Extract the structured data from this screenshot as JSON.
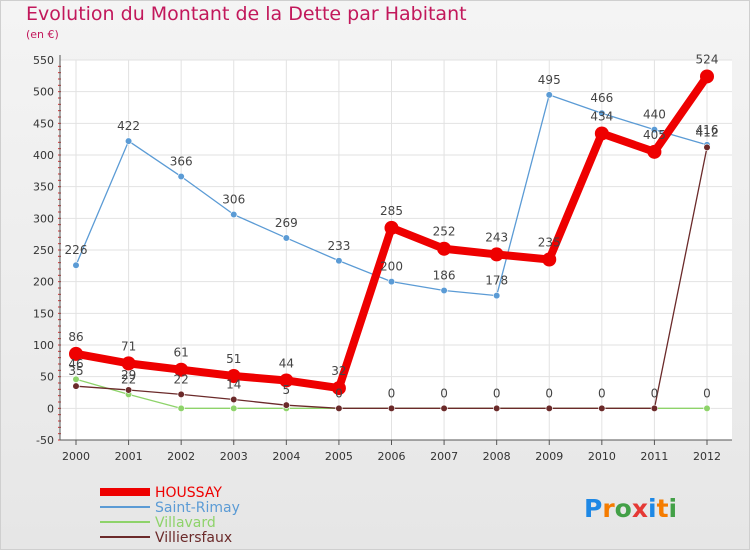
{
  "chart_data": {
    "type": "line",
    "title": "Evolution du Montant de la Dette par Habitant",
    "subtitle": "(en €)",
    "x": [
      "2000",
      "2001",
      "2002",
      "2003",
      "2004",
      "2005",
      "2006",
      "2007",
      "2008",
      "2009",
      "2010",
      "2011",
      "2012"
    ],
    "ylim": [
      -50,
      550
    ],
    "yticks": [
      -50,
      0,
      50,
      100,
      150,
      200,
      250,
      300,
      350,
      400,
      450,
      500,
      550
    ],
    "grid": true,
    "legend_position": "bottom-left",
    "series": [
      {
        "name": "HOUSSAY",
        "color": "#ee0000",
        "values": [
          86,
          71,
          61,
          51,
          44,
          32,
          285,
          252,
          243,
          235,
          434,
          405,
          524
        ],
        "labels": [
          "86",
          "71",
          "61",
          "51",
          "44",
          "32",
          "285",
          "252",
          "243",
          "235",
          "434",
          "405",
          "524"
        ]
      },
      {
        "name": "Saint-Rimay",
        "color": "#5b9bd5",
        "values": [
          226,
          422,
          366,
          306,
          269,
          233,
          200,
          186,
          178,
          495,
          466,
          440,
          416
        ],
        "labels": [
          "226",
          "422",
          "366",
          "306",
          "269",
          "233",
          "200",
          "186",
          "178",
          "495",
          "466",
          "440",
          "416"
        ]
      },
      {
        "name": "Villavard",
        "color": "#8ed36a",
        "values": [
          46,
          22,
          0,
          0,
          0,
          0,
          0,
          0,
          0,
          0,
          0,
          0,
          0
        ],
        "labels": [
          "46",
          "22",
          "",
          "",
          "",
          "",
          "",
          "",
          "",
          "",
          "",
          "",
          "0"
        ]
      },
      {
        "name": "Villiersfaux",
        "color": "#6b2a2a",
        "values": [
          35,
          29,
          22,
          14,
          5,
          0,
          0,
          0,
          0,
          0,
          0,
          0,
          412
        ],
        "labels": [
          "35",
          "29",
          "22",
          "14",
          "5",
          "0",
          "0",
          "0",
          "0",
          "0",
          "0",
          "0",
          "412"
        ]
      }
    ],
    "logo": "Proxiti"
  }
}
